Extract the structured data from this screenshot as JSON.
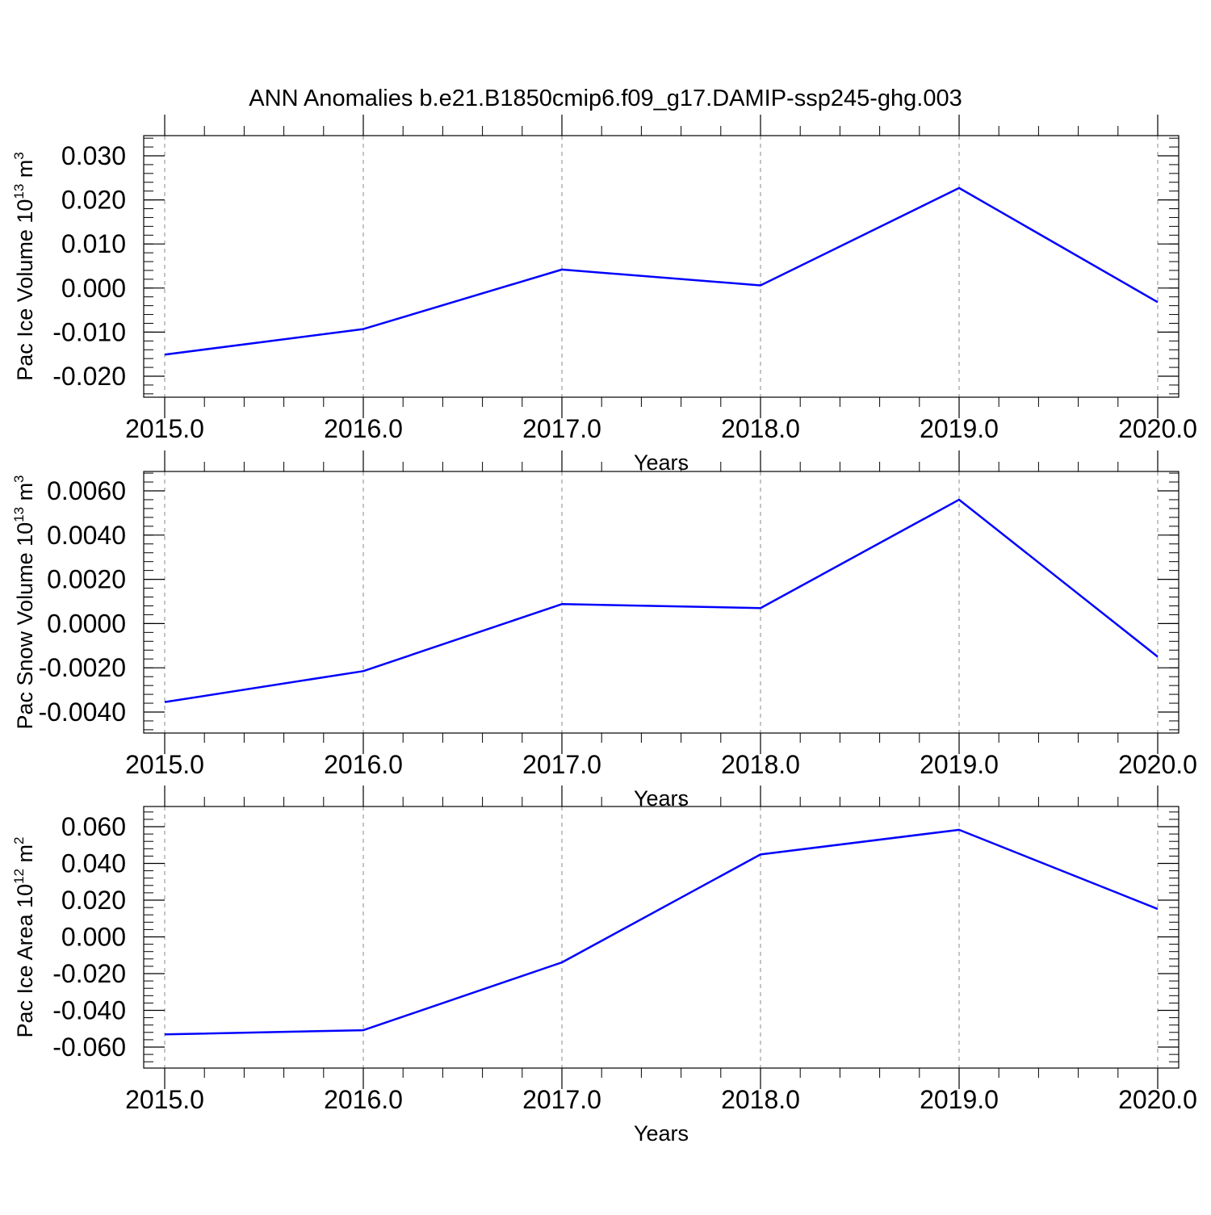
{
  "title": "ANN Anomalies b.e21.B1850cmip6.f09_g17.DAMIP-ssp245-ghg.003",
  "chart_data": [
    {
      "type": "line",
      "ylabel_text": "Pac Ice Volume 10",
      "ylabel_sup": "13",
      "ylabel_unit": " m",
      "ylabel_unit_sup": "3",
      "xlabel": "Years",
      "x": [
        2015,
        2016,
        2017,
        2018,
        2019,
        2020
      ],
      "xtick_values": [
        2015,
        2016,
        2017,
        2018,
        2019,
        2020
      ],
      "xtick_labels": [
        "2015.0",
        "2016.0",
        "2017.0",
        "2018.0",
        "2019.0",
        "2020.0"
      ],
      "ytick_values": [
        -0.02,
        -0.01,
        0.0,
        0.01,
        0.02,
        0.03
      ],
      "ytick_labels": [
        "-0.020",
        "-0.010",
        "0.000",
        "0.010",
        "0.020",
        "0.030"
      ],
      "ylim": [
        -0.02,
        0.03
      ],
      "series": [
        {
          "color": "#0000ff",
          "values": [
            -0.0151,
            -0.0093,
            0.0042,
            0.0006,
            0.0227,
            -0.0032
          ]
        }
      ]
    },
    {
      "type": "line",
      "ylabel_text": "Pac Snow Volume 10",
      "ylabel_sup": "13",
      "ylabel_unit": " m",
      "ylabel_unit_sup": "3",
      "xlabel": "Years",
      "x": [
        2015,
        2016,
        2017,
        2018,
        2019,
        2020
      ],
      "xtick_values": [
        2015,
        2016,
        2017,
        2018,
        2019,
        2020
      ],
      "xtick_labels": [
        "2015.0",
        "2016.0",
        "2017.0",
        "2018.0",
        "2019.0",
        "2020.0"
      ],
      "ytick_values": [
        -0.004,
        -0.002,
        0.0,
        0.002,
        0.004,
        0.006
      ],
      "ytick_labels": [
        "-0.0040",
        "-0.0020",
        "0.0000",
        "0.0020",
        "0.0040",
        "0.0060"
      ],
      "ylim": [
        -0.004,
        0.006
      ],
      "series": [
        {
          "color": "#0000ff",
          "values": [
            -0.00355,
            -0.00215,
            0.00088,
            0.0007,
            0.0056,
            -0.0015
          ]
        }
      ]
    },
    {
      "type": "line",
      "ylabel_text": "Pac Ice Area 10",
      "ylabel_sup": "12",
      "ylabel_unit": " m",
      "ylabel_unit_sup": "2",
      "xlabel": "Years",
      "x": [
        2015,
        2016,
        2017,
        2018,
        2019,
        2020
      ],
      "xtick_values": [
        2015,
        2016,
        2017,
        2018,
        2019,
        2020
      ],
      "xtick_labels": [
        "2015.0",
        "2016.0",
        "2017.0",
        "2018.0",
        "2019.0",
        "2020.0"
      ],
      "ytick_values": [
        -0.06,
        -0.04,
        -0.02,
        0.0,
        0.02,
        0.04,
        0.06
      ],
      "ytick_labels": [
        "-0.060",
        "-0.040",
        "-0.020",
        "0.000",
        "0.020",
        "0.040",
        "0.060"
      ],
      "ylim": [
        -0.06,
        0.06
      ],
      "series": [
        {
          "color": "#0000ff",
          "values": [
            -0.0531,
            -0.0508,
            -0.0139,
            0.0449,
            0.0583,
            0.0152
          ]
        }
      ]
    }
  ]
}
